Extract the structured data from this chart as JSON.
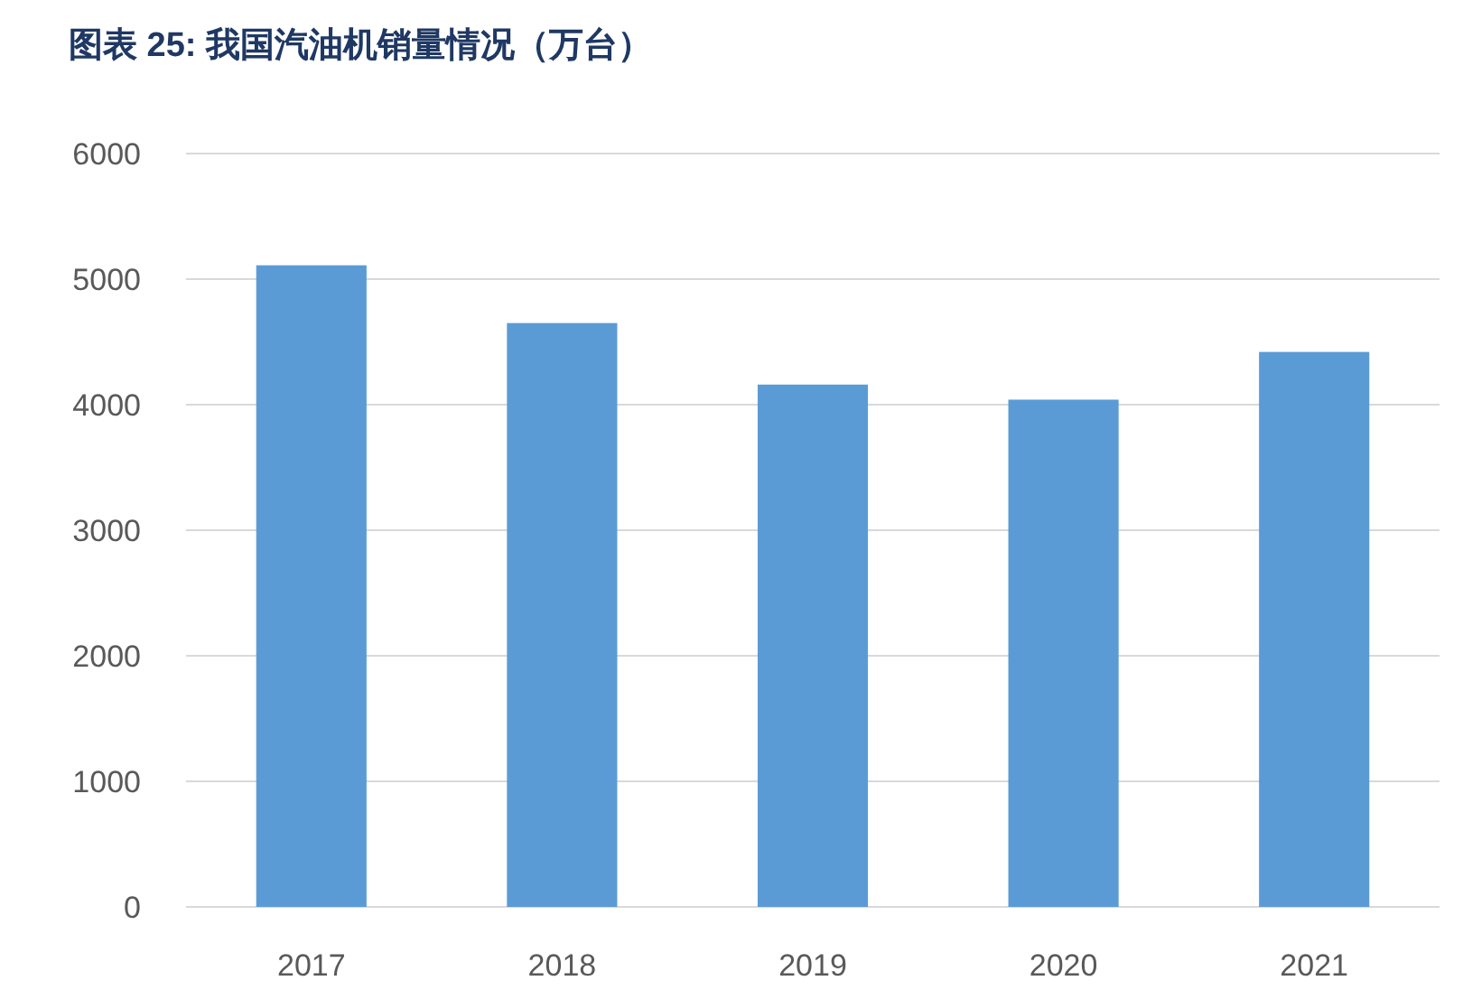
{
  "chart_data": {
    "type": "bar",
    "title": "图表 25:  我国汽油机销量情况（万台）",
    "categories": [
      "2017",
      "2018",
      "2019",
      "2020",
      "2021"
    ],
    "values": [
      5110,
      4650,
      4160,
      4040,
      4420
    ],
    "color": "#5b9bd5",
    "ylim": [
      0,
      6000
    ],
    "yticks": [
      0,
      1000,
      2000,
      3000,
      4000,
      5000,
      6000
    ],
    "grid": "y"
  }
}
